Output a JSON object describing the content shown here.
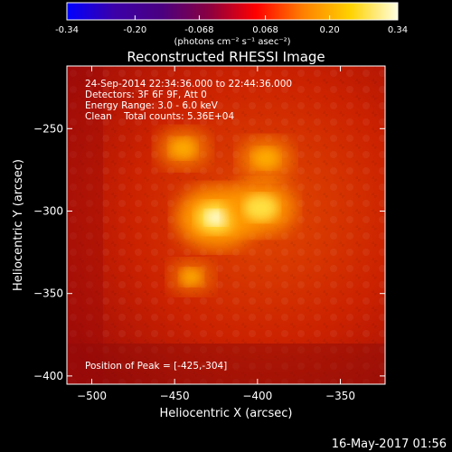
{
  "colorbar": {
    "ticks": [
      "-0.34",
      "-0.20",
      "-0.068",
      "0.068",
      "0.20",
      "0.34"
    ],
    "unit_label": "(photons cm⁻² s⁻¹ asec⁻²)",
    "range": [
      -0.34,
      0.34
    ],
    "colors": [
      "#0000ff",
      "#3b00a8",
      "#4a0080",
      "#8a0040",
      "#ff0000",
      "#ff8000",
      "#ffd200",
      "#ffffe0"
    ]
  },
  "plot": {
    "title": "Reconstructed RHESSI Image",
    "annotations": [
      "24-Sep-2014 22:34:36.000 to 22:44:36.000",
      "Detectors: 3F 6F 9F, Att 0",
      "Energy Range: 3.0 - 6.0 keV",
      "Clean    Total counts: 5.36E+04"
    ],
    "peak_label": "Position of Peak = [-425,-304]"
  },
  "footer": {
    "timestamp": "16-May-2017 01:56"
  },
  "chart_data": {
    "type": "heatmap",
    "title": "Reconstructed RHESSI Image",
    "xlabel": "Heliocentric X (arcsec)",
    "ylabel": "Heliocentric Y (arcsec)",
    "xlim": [
      -515,
      -323
    ],
    "ylim": [
      -405,
      -212
    ],
    "x_ticks": [
      -500,
      -450,
      -400,
      -350
    ],
    "x_tick_labels": [
      "−500",
      "−450",
      "−400",
      "−350"
    ],
    "y_ticks": [
      -250,
      -300,
      -350,
      -400
    ],
    "y_tick_labels": [
      "−250",
      "−300",
      "−350",
      "−400"
    ],
    "colorscale_range": [
      -0.34,
      0.34
    ],
    "sources": [
      {
        "x": -425,
        "y": -304,
        "intensity": 0.34
      },
      {
        "x": -398,
        "y": -298,
        "intensity": 0.26
      },
      {
        "x": -395,
        "y": -268,
        "intensity": 0.15
      },
      {
        "x": -445,
        "y": -262,
        "intensity": 0.14
      },
      {
        "x": -440,
        "y": -340,
        "intensity": 0.08
      }
    ],
    "peak_position": [
      -425,
      -304
    ]
  }
}
